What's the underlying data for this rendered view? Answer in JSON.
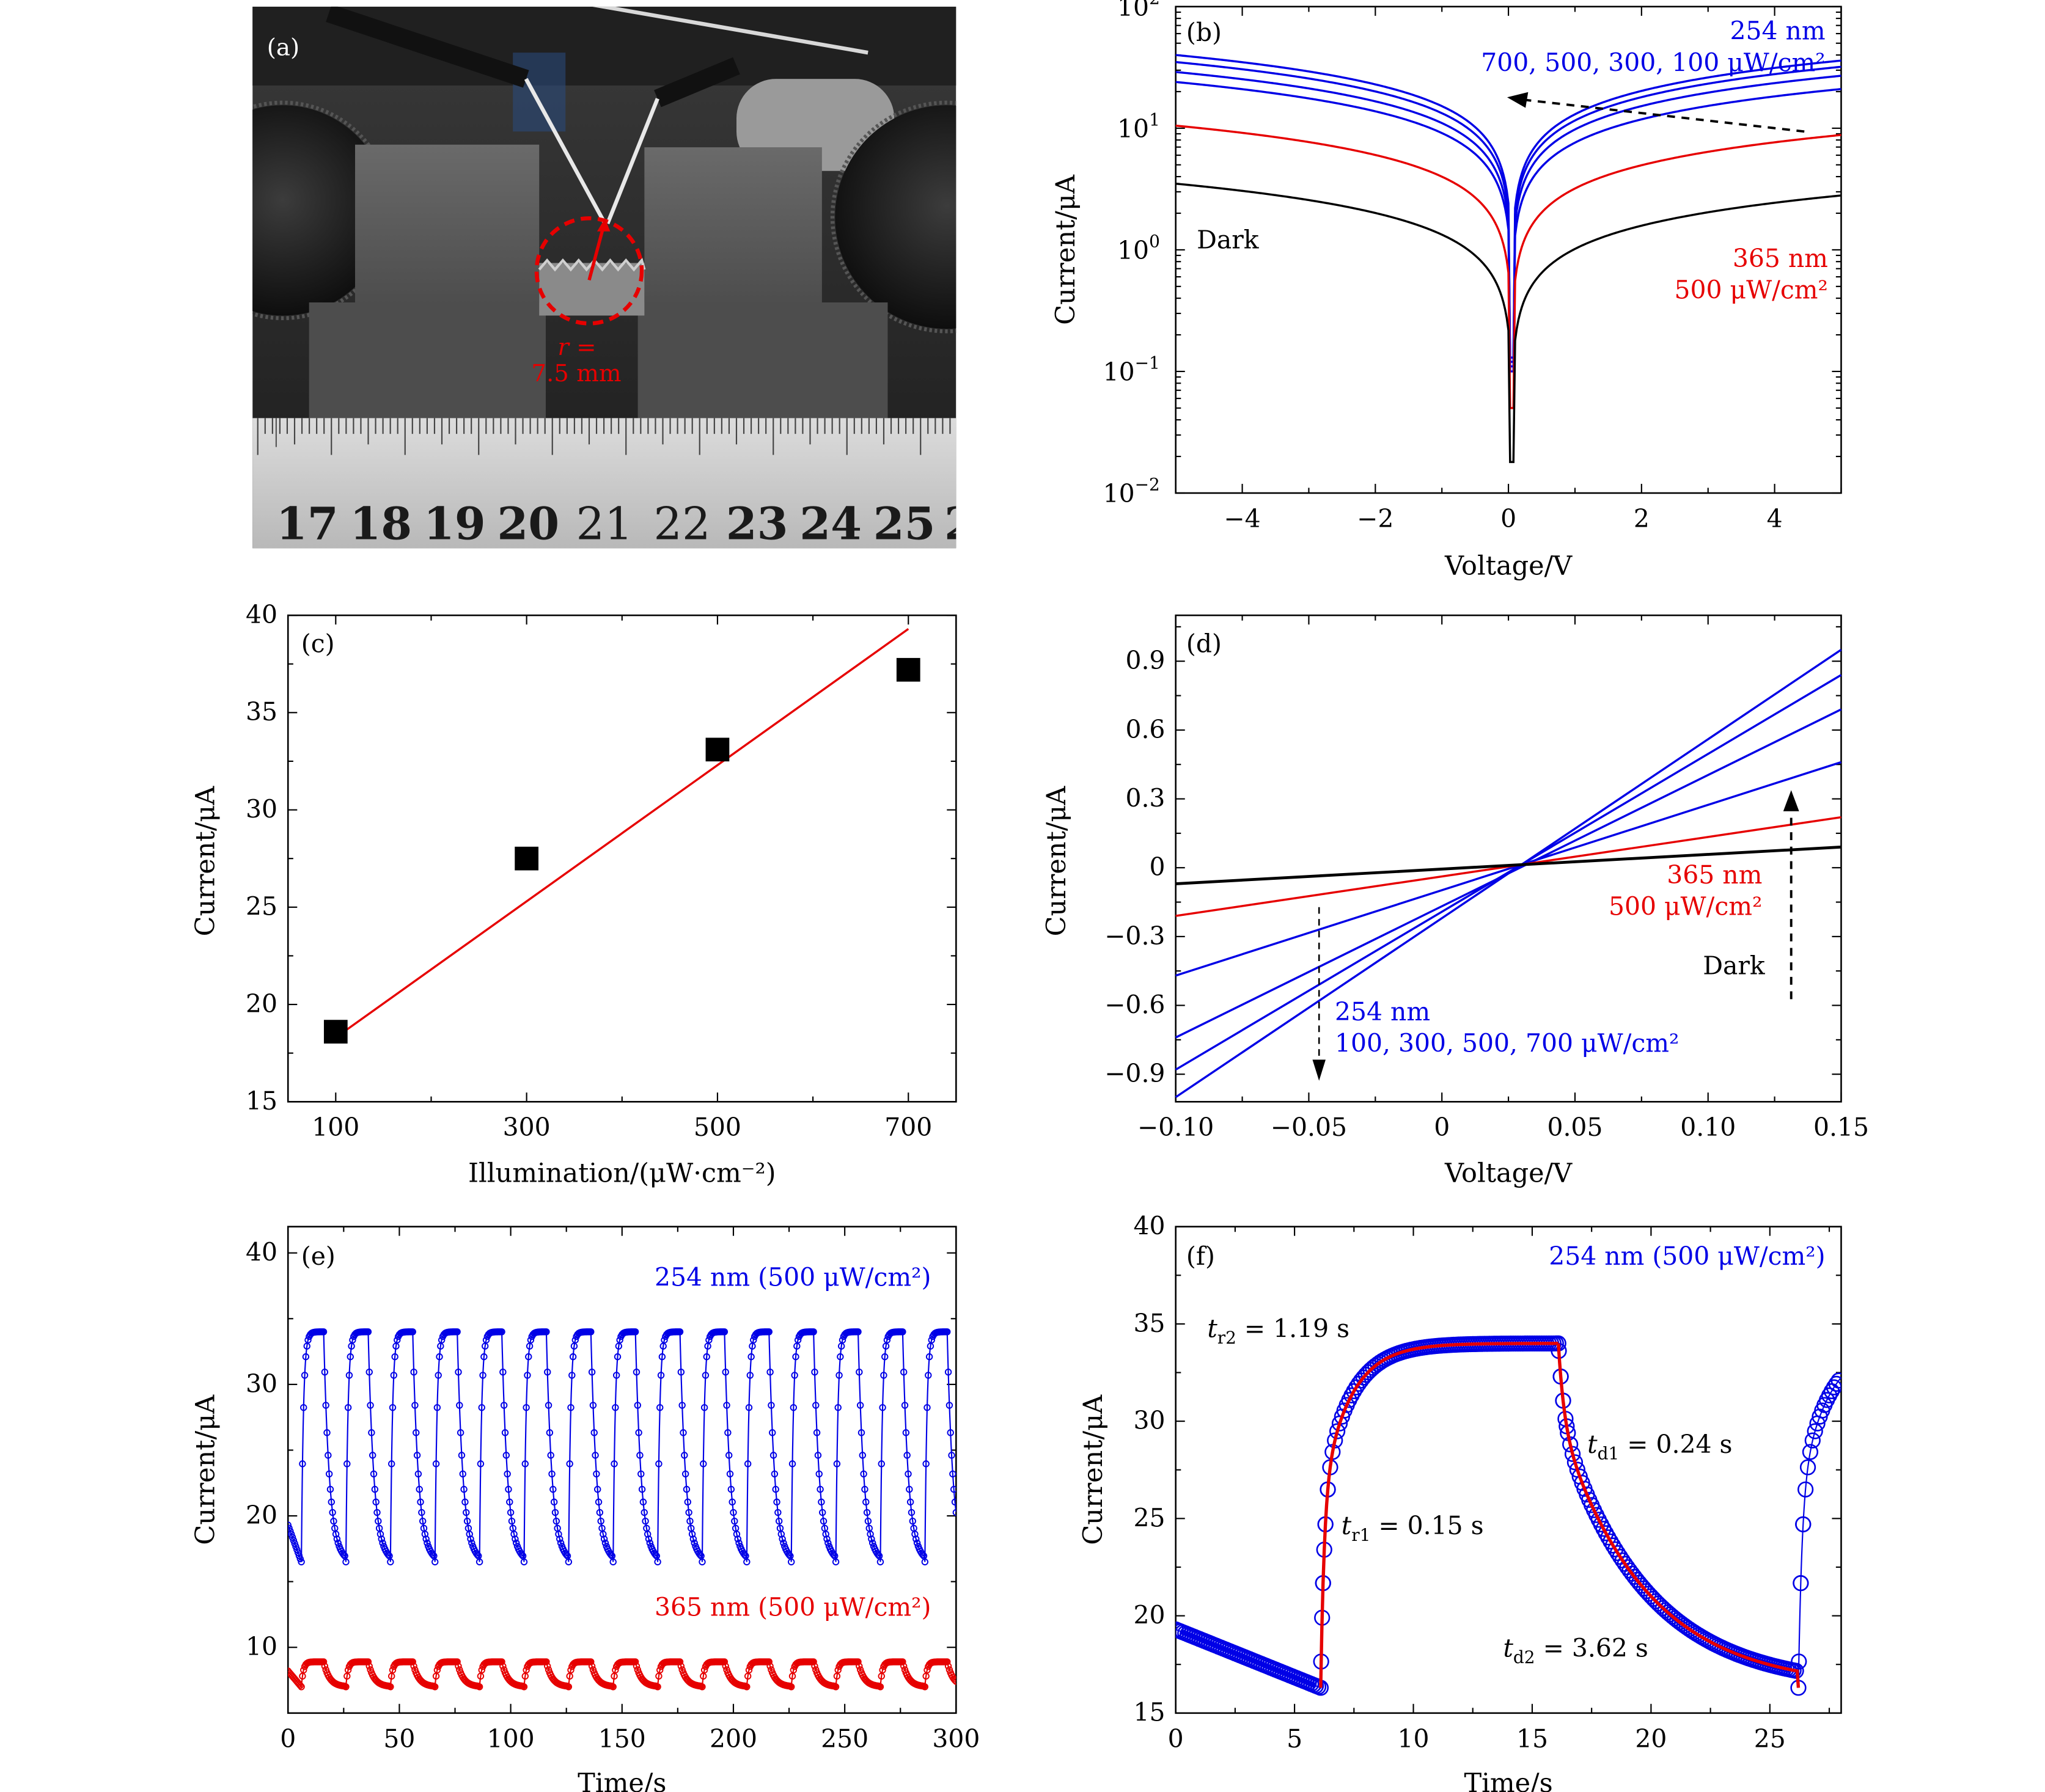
{
  "figure": {
    "photo": {
      "panel_label": "(a)",
      "radius_label_line1": "r =",
      "radius_label_line2": "7.5 mm",
      "ruler_numbers": [
        "17",
        "18",
        "19",
        "20",
        "21",
        "22",
        "23",
        "24",
        "25",
        "2"
      ]
    }
  },
  "chart_data": [
    {
      "panel": "(b)",
      "type": "line",
      "yscale": "log",
      "xlabel": "Voltage/V",
      "ylabel": "Current/μA",
      "xlim": [
        -5,
        5
      ],
      "ylim": [
        0.01,
        100
      ],
      "xticks": [
        "−4",
        "−2",
        "0",
        "2",
        "4"
      ],
      "yticks": [
        "10^-2",
        "10^-1",
        "10^0",
        "10^1",
        "10^2"
      ],
      "annotations": {
        "uv254_line1": "254 nm",
        "uv254_line2": "700, 500, 300, 100 μW/cm²",
        "uv365_line1": "365 nm",
        "uv365_line2": "500 μW/cm²",
        "dark": "Dark"
      },
      "series": [
        {
          "color": "#0000e6",
          "left_at_-5": 40,
          "right_at_5": 36,
          "min_at_0": 0.13
        },
        {
          "color": "#0000e6",
          "left_at_-5": 35,
          "right_at_5": 32,
          "min_at_0": 0.12
        },
        {
          "color": "#0000e6",
          "left_at_-5": 29,
          "right_at_5": 27,
          "min_at_0": 0.11
        },
        {
          "color": "#0000e6",
          "left_at_-5": 24,
          "right_at_5": 21,
          "min_at_0": 0.1
        },
        {
          "color": "#e60000",
          "left_at_-5": 10.5,
          "right_at_5": 8.8,
          "min_at_0": 0.05
        },
        {
          "color": "#000000",
          "left_at_-5": 3.5,
          "right_at_5": 2.8,
          "min_at_0": 0.018
        }
      ]
    },
    {
      "panel": "(c)",
      "type": "scatter",
      "xlabel": "Illumination/(μW·cm⁻²)",
      "ylabel": "Current/μA",
      "xlim": [
        50,
        750
      ],
      "ylim": [
        15,
        40
      ],
      "xticks": [
        "100",
        "300",
        "500",
        "700"
      ],
      "yticks": [
        "15",
        "20",
        "25",
        "30",
        "35",
        "40"
      ],
      "x": [
        100,
        300,
        500,
        700
      ],
      "y": [
        18.6,
        27.5,
        33.1,
        37.2
      ],
      "fit": {
        "color": "#e60000",
        "x": [
          100,
          700
        ],
        "y": [
          18.3,
          39.3
        ]
      }
    },
    {
      "panel": "(d)",
      "type": "line",
      "xlabel": "Voltage/V",
      "ylabel": "Current/μA",
      "xlim": [
        -0.1,
        0.15
      ],
      "ylim": [
        -1.02,
        1.1
      ],
      "xticks": [
        "−0.10",
        "−0.05",
        "0",
        "0.05",
        "0.10",
        "0.15"
      ],
      "yticks": [
        "−0.9",
        "−0.6",
        "−0.3",
        "0",
        "0.3",
        "0.6",
        "0.9"
      ],
      "annotations": {
        "uv365_line1": "365 nm",
        "uv365_line2": "500 μW/cm²",
        "dark": "Dark",
        "uv254_line1": "254 nm",
        "uv254_line2": "100, 300, 500, 700 μW/cm²"
      },
      "series": [
        {
          "color": "#0000e6",
          "x": [
            -0.1,
            0.15
          ],
          "y": [
            -1.0,
            0.95
          ]
        },
        {
          "color": "#0000e6",
          "x": [
            -0.1,
            0.15
          ],
          "y": [
            -0.88,
            0.84
          ]
        },
        {
          "color": "#0000e6",
          "x": [
            -0.1,
            0.15
          ],
          "y": [
            -0.74,
            0.69
          ]
        },
        {
          "color": "#0000e6",
          "x": [
            -0.1,
            0.15
          ],
          "y": [
            -0.47,
            0.46
          ]
        },
        {
          "color": "#e60000",
          "x": [
            -0.1,
            0.15
          ],
          "y": [
            -0.21,
            0.22
          ]
        },
        {
          "color": "#000000",
          "x": [
            -0.1,
            0.15
          ],
          "y": [
            -0.07,
            0.09
          ]
        }
      ]
    },
    {
      "panel": "(e)",
      "type": "line",
      "xlabel": "Time/s",
      "ylabel": "Current/μA",
      "xlim": [
        0,
        300
      ],
      "ylim": [
        5,
        42
      ],
      "xticks": [
        "0",
        "50",
        "100",
        "150",
        "200",
        "250",
        "300"
      ],
      "yticks": [
        "10",
        "20",
        "30",
        "40"
      ],
      "annotations": {
        "uv254": "254 nm (500 μW/cm²)",
        "uv365": "365 nm (500 μW/cm²)"
      },
      "series": [
        {
          "color": "#0000e6",
          "period_s": 20,
          "first_on_s": 6,
          "on_duration_s": 10,
          "low": 16.5,
          "high": 34.0,
          "start": 19.3
        },
        {
          "color": "#e60000",
          "period_s": 20,
          "first_on_s": 6,
          "on_duration_s": 10,
          "low": 7.0,
          "high": 8.9,
          "start": 8.2
        }
      ]
    },
    {
      "panel": "(f)",
      "type": "line",
      "xlabel": "Time/s",
      "ylabel": "Current/μA",
      "xlim": [
        0,
        28
      ],
      "ylim": [
        15,
        40
      ],
      "xticks": [
        "0",
        "5",
        "10",
        "15",
        "20",
        "25"
      ],
      "yticks": [
        "15",
        "20",
        "25",
        "30",
        "35",
        "40"
      ],
      "annotations": {
        "header": "254 nm (500 μW/cm²)",
        "tr2": "t",
        "tr2_sub": "r2",
        "tr2_val": " = 1.19 s",
        "tr1": "t",
        "tr1_sub": "r1",
        "tr1_val": " = 0.15 s",
        "td1": "t",
        "td1_sub": "d1",
        "td1_val": " = 0.24 s",
        "td2": "t",
        "td2_sub": "d2",
        "td2_val": " = 3.62 s"
      },
      "series": [
        {
          "name": "",
          "color": "#0000e6",
          "marker": "open-circle",
          "on_s": 6.1,
          "off_s": 16.1,
          "second_on_s": 26.2,
          "start": 19.3,
          "low": 16.3,
          "high": 34.0
        },
        {
          "name": "",
          "color": "#e60000",
          "fit": true
        }
      ]
    }
  ]
}
